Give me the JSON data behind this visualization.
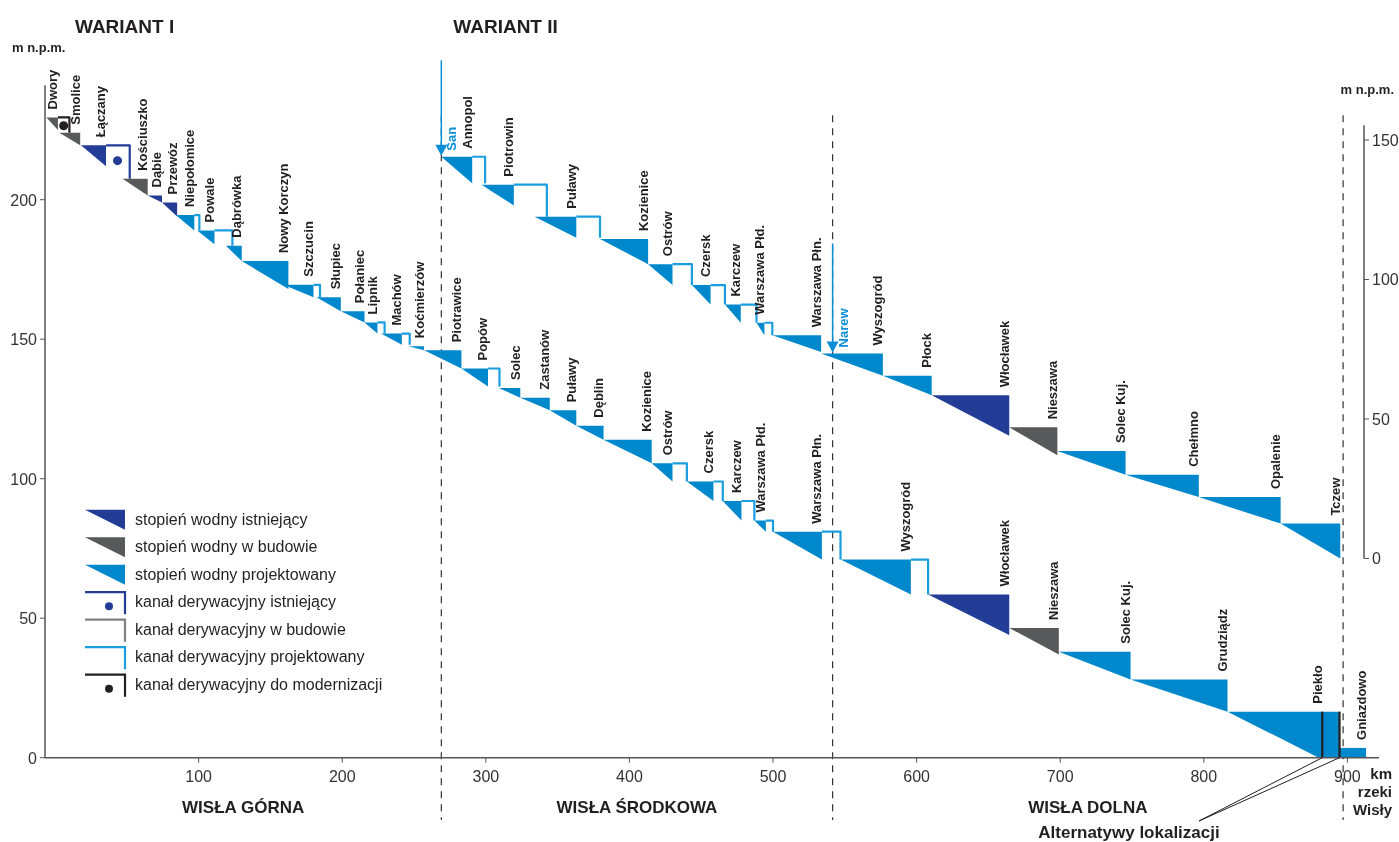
{
  "chart_data": {
    "type": "area",
    "title": "WARIANT I",
    "subtitle": "WARIANT II",
    "xlabel": "km rzeki Wisły",
    "ylabel": "m n.p.m.",
    "y2label": "m n.p.m.",
    "xlim": [
      -7,
      922
    ],
    "xticks": [
      100,
      200,
      300,
      400,
      500,
      600,
      700,
      800,
      900
    ],
    "ylim": [
      0,
      241
    ],
    "yticks": [
      0,
      50,
      100,
      150,
      200
    ],
    "y2lim": [
      -71.4,
      169.6
    ],
    "y2ticks": [
      0,
      50,
      100,
      150
    ],
    "legend": "bottom left",
    "series": [
      {
        "name": "stopień wodny istniejący",
        "color": "#233d97",
        "x": [
          18,
          35.5,
          35.5,
          null,
          64.5,
          74.5,
          74.5,
          null,
          74.5,
          85,
          85,
          null,
          608,
          664.5,
          664.5
        ],
        "values": [
          219.5,
          219.5,
          212,
          null,
          201.5,
          201.5,
          199,
          null,
          199,
          199,
          194,
          null,
          58.5,
          58.5,
          44
        ]
      },
      {
        "name": "stopień wodny w budowie",
        "color": "#58595b",
        "x": [
          -6,
          2,
          2,
          null,
          3,
          17.5,
          17.5,
          null,
          47,
          64.5,
          64.5,
          null,
          664.5,
          699,
          699
        ],
        "values": [
          229.5,
          229.5,
          225,
          null,
          224,
          224,
          219.5,
          null,
          207.5,
          207.5,
          201.5,
          null,
          46.5,
          46.5,
          37
        ]
      },
      {
        "name": "stopień wodny projektowany",
        "color": "#0088cc",
        "x": [
          84,
          97,
          97,
          null,
          99,
          111,
          111,
          null,
          119,
          130,
          130,
          null,
          130,
          162.5,
          162.5,
          null,
          159,
          180,
          180,
          null,
          182,
          199,
          199,
          null,
          199,
          215.5,
          215.5,
          null,
          215.5,
          224.5,
          224.5,
          null,
          227,
          241.5,
          241.5,
          null,
          246,
          257,
          257,
          null,
          257,
          283,
          283,
          null,
          283,
          301.5,
          301.5,
          null,
          309,
          324,
          324,
          null,
          324,
          344.5,
          344.5,
          null,
          344.5,
          363,
          363,
          null,
          363,
          382,
          382,
          null,
          382,
          415.5,
          415.5,
          null,
          415.5,
          430,
          430,
          null,
          440,
          458.5,
          458.5,
          null,
          465,
          478,
          478,
          null,
          487,
          495,
          495,
          null,
          500,
          534,
          534,
          null,
          547,
          596,
          596,
          null,
          699,
          749,
          749,
          null,
          749,
          816.5,
          816.5,
          null,
          816.5,
          894.5,
          894.5,
          880,
          null,
          894.5,
          913,
          913,
          894.5
        ],
        "values": [
          194.5,
          194.5,
          189,
          null,
          189,
          189,
          184,
          null,
          183.5,
          183.5,
          178,
          null,
          178,
          178,
          168,
          null,
          169.5,
          169.5,
          165,
          null,
          165,
          165,
          160,
          null,
          160,
          160,
          156,
          null,
          156,
          156,
          152,
          null,
          152,
          152,
          148,
          null,
          147.5,
          147.5,
          146,
          null,
          146,
          146,
          139.5,
          null,
          139.5,
          139.5,
          133,
          null,
          132.5,
          132.5,
          129,
          null,
          129,
          129,
          124.5,
          null,
          124.5,
          124.5,
          119,
          null,
          119,
          119,
          114,
          null,
          114,
          114,
          105.5,
          null,
          105.5,
          105.5,
          99,
          null,
          99,
          99,
          92,
          null,
          92,
          92,
          85,
          null,
          85,
          85,
          81,
          null,
          81,
          81,
          71,
          null,
          71,
          71,
          58.5,
          null,
          38,
          38,
          28,
          null,
          28,
          28,
          16.5,
          null,
          16.5,
          16.5,
          0,
          0,
          null,
          3.5,
          3.5,
          0,
          0
        ]
      },
      {
        "name": "kanał derywacyjny istniejący",
        "type": "line",
        "color": "#233d97",
        "x": [
          35.5,
          52,
          52
        ],
        "values": [
          219.5,
          219.5,
          207.5
        ]
      },
      {
        "name": "kanał derywacyjny  w budowie",
        "type": "line",
        "color": "#808080"
      },
      {
        "name": "kanał derywacyjny projektowany",
        "type": "line",
        "color": "#1a9ee0",
        "x": [
          97,
          100.5,
          100.5,
          null,
          111,
          123.5,
          123.5,
          null,
          180,
          184.5,
          184.5,
          null,
          224.5,
          229.5,
          229.5,
          null,
          241.5,
          247,
          247,
          null,
          301.5,
          309.5,
          309.5,
          null,
          430,
          440,
          440,
          null,
          458.5,
          465,
          465,
          null,
          478,
          487,
          487,
          null,
          495,
          500,
          500,
          null,
          534,
          547,
          547,
          null,
          596,
          608,
          608
        ],
        "values": [
          194.5,
          194.5,
          189,
          null,
          189,
          189,
          183.5,
          null,
          169.5,
          169.5,
          165,
          null,
          156,
          156,
          152,
          null,
          152,
          152,
          148,
          null,
          139.5,
          139.5,
          133,
          null,
          105.5,
          105.5,
          99,
          null,
          99,
          99,
          92,
          null,
          92,
          92,
          85,
          null,
          85,
          85,
          81,
          null,
          81,
          81,
          71,
          null,
          71,
          71,
          58.5
        ]
      },
      {
        "name": "kanał derywacyjny do modernizacji",
        "type": "line",
        "color": "#231f20",
        "x": [
          2,
          10,
          10
        ],
        "values": [
          229.5,
          229.5,
          224
        ]
      },
      {
        "axis": "y2",
        "color": "#233d97",
        "x": [
          610.5,
          664.5,
          664.5
        ],
        "values": [
          58.5,
          58.5,
          44
        ]
      },
      {
        "axis": "y2",
        "color": "#58595b",
        "x": [
          664.5,
          698,
          698
        ],
        "values": [
          47,
          47,
          37
        ]
      },
      {
        "axis": "y2",
        "color": "#0088cc",
        "x": [
          269,
          290.5,
          290.5,
          null,
          297,
          319.5,
          319.5,
          null,
          334,
          363,
          363,
          null,
          379.5,
          413,
          413,
          null,
          413,
          430,
          430,
          null,
          443.5,
          456.5,
          456.5,
          null,
          466.5,
          477.5,
          477.5,
          null,
          488.5,
          494,
          494,
          null,
          499.5,
          533.5,
          533.5,
          null,
          533.5,
          541.5,
          576.5,
          576.5,
          null,
          576.5,
          610.5,
          610.5,
          null,
          698,
          745.5,
          745.5,
          null,
          745.5,
          796.5,
          796.5,
          null,
          796.5,
          853.5,
          853.5,
          null,
          853.5,
          895,
          895
        ],
        "values": [
          144,
          144,
          134.5,
          null,
          134,
          134,
          126.5,
          null,
          122.5,
          122.5,
          115,
          null,
          114.5,
          114.5,
          105.5,
          null,
          105.5,
          105.5,
          98,
          null,
          98,
          98,
          91,
          null,
          91,
          91,
          84.5,
          null,
          84.5,
          84.5,
          80,
          null,
          80,
          80,
          74,
          null,
          73.5,
          73.5,
          73.5,
          65.5,
          null,
          65.5,
          65.5,
          58.5,
          null,
          38.5,
          38.5,
          30,
          null,
          30,
          30,
          22,
          null,
          22,
          22,
          12.5,
          null,
          12.5,
          12.5,
          0
        ]
      },
      {
        "type": "line",
        "axis": "y2",
        "color": "#1a9ee0",
        "x": [
          290.5,
          299.5,
          299.5,
          null,
          319.5,
          342.5,
          342.5,
          null,
          363,
          379.5,
          379.5,
          null,
          430,
          443.5,
          443.5,
          null,
          456.5,
          466.5,
          466.5,
          null,
          477.5,
          488.5,
          488.5,
          null,
          494,
          499.5,
          499.5
        ],
        "values": [
          144,
          144,
          134.5,
          null,
          134,
          134,
          122.5,
          null,
          122.5,
          122.5,
          115,
          null,
          105.5,
          105.5,
          98,
          null,
          98,
          98,
          91,
          null,
          91,
          91,
          84.5,
          null,
          84.5,
          84.5,
          80
        ]
      },
      {
        "type": "scatter",
        "color": "#231f20",
        "x": [
          6
        ],
        "values": [
          226.5
        ]
      },
      {
        "type": "scatter",
        "color": "#233d97",
        "x": [
          43.5
        ],
        "values": [
          214
        ]
      },
      {
        "type": "line",
        "color": "#231f20",
        "x": [
          882.5,
          882.5,
          null,
          894.5,
          894.5
        ],
        "values": [
          16.5,
          0,
          null,
          16.5,
          0
        ]
      }
    ],
    "ref_lines": [
      {
        "axis": "x",
        "value": 269,
        "line_style": "dashed"
      },
      {
        "axis": "x",
        "value": 541.5,
        "line_style": "dashed"
      },
      {
        "axis": "x",
        "value": 897,
        "line_style": "dashed"
      }
    ],
    "annotations": [
      "WISŁA GÓRNA",
      "WISŁA ŚRODKOWA",
      "WISŁA DOLNA",
      {
        "text": "San",
        "x": 269,
        "y": 215.4
      },
      {
        "text": "Narew",
        "x": 541.5,
        "y": 144.9
      },
      {
        "text": "Alternatywy lokalizacji",
        "x": 882.5,
        "y": 0
      },
      {
        "text": "Dwory",
        "x": 2,
        "y": 229.5
      },
      {
        "text": "Smolice",
        "x": 17.5,
        "y": 224
      },
      {
        "text": "Łączany",
        "x": 35.5,
        "y": 219.5
      },
      {
        "text": "Kościuszko",
        "x": 64.5,
        "y": 207.5
      },
      {
        "text": "Dąbie",
        "x": 74.5,
        "y": 201.5
      },
      {
        "text": "Przewóz",
        "x": 85,
        "y": 199
      },
      {
        "text": "Niepołomice",
        "x": 97,
        "y": 194.5
      },
      {
        "text": "Powale",
        "x": 111,
        "y": 189
      },
      {
        "text": "Dąbrówka",
        "x": 130,
        "y": 183.5
      },
      {
        "text": "Nowy Korczyn",
        "x": 162.5,
        "y": 178
      },
      {
        "text": "Szczucin",
        "x": 180,
        "y": 169.5
      },
      {
        "text": "Słupiec",
        "x": 199,
        "y": 165
      },
      {
        "text": "Połaniec",
        "x": 215.5,
        "y": 160
      },
      {
        "text": "Lipnik",
        "x": 224.5,
        "y": 156
      },
      {
        "text": "Machów",
        "x": 241.5,
        "y": 152
      },
      {
        "text": "Koćmierzów",
        "x": 257,
        "y": 147.5
      },
      {
        "text": "Piotrawice",
        "x": 283,
        "y": 146
      },
      {
        "text": "Popów",
        "x": 301.5,
        "y": 139.5
      },
      {
        "text": "Solec",
        "x": 324,
        "y": 132.5
      },
      {
        "text": "Zastanów",
        "x": 344.5,
        "y": 129
      },
      {
        "text": "Puławy",
        "x": 363,
        "y": 124.5
      },
      {
        "text": "Dęblin",
        "x": 382,
        "y": 119
      },
      {
        "text": "Kozienice",
        "x": 415.5,
        "y": 114
      },
      {
        "text": "Ostrów",
        "x": 430,
        "y": 105.5
      },
      {
        "text": "Czersk",
        "x": 458.5,
        "y": 99
      },
      {
        "text": "Karczew",
        "x": 478,
        "y": 92
      },
      {
        "text": "Warszawa Płd.",
        "x": 495,
        "y": 85
      },
      {
        "text": "Warszawa Płn.",
        "x": 534,
        "y": 81
      },
      {
        "text": "Wyszogród",
        "x": 596,
        "y": 71
      },
      {
        "text": "Włocławek",
        "x": 664.5,
        "y": 58.5
      },
      {
        "text": "Nieszawa",
        "x": 699,
        "y": 46.5
      },
      {
        "text": "Solec Kuj.",
        "x": 749,
        "y": 38
      },
      {
        "text": "Grudziądz",
        "x": 816.5,
        "y": 28
      },
      {
        "text": "Piekło",
        "x": 882.5,
        "y": 16.5
      },
      {
        "text": "Gniazdowo",
        "x": 913,
        "y": 3.5
      },
      {
        "text": "Annopol",
        "x": 290.5,
        "y": 215.4
      },
      {
        "text": "Piotrowin",
        "x": 319.5,
        "y": 205.4
      },
      {
        "text": "Puławy",
        "x": 363,
        "y": 193.9
      },
      {
        "text": "Kozienice",
        "x": 413,
        "y": 185.9
      },
      {
        "text": "Ostrów",
        "x": 430,
        "y": 176.9
      },
      {
        "text": "Czersk",
        "x": 456.5,
        "y": 169.4
      },
      {
        "text": "Karczew",
        "x": 477.5,
        "y": 162.4
      },
      {
        "text": "Warszawa Płd.",
        "x": 494,
        "y": 155.9
      },
      {
        "text": "Warszawa Płn.",
        "x": 533.5,
        "y": 151.4
      },
      {
        "text": "Wyszogród",
        "x": 576.5,
        "y": 144.9
      },
      {
        "text": "Płock",
        "x": 610.5,
        "y": 136.9
      },
      {
        "text": "Włocławek",
        "x": 664.5,
        "y": 129.9
      },
      {
        "text": "Nieszawa",
        "x": 698,
        "y": 118.4
      },
      {
        "text": "Solec Kuj.",
        "x": 745.5,
        "y": 109.9
      },
      {
        "text": "Chełmno",
        "x": 796.5,
        "y": 101.4
      },
      {
        "text": "Opalenie",
        "x": 853.5,
        "y": 93.4
      },
      {
        "text": "Tczew",
        "x": 895,
        "y": 83.9
      }
    ]
  }
}
